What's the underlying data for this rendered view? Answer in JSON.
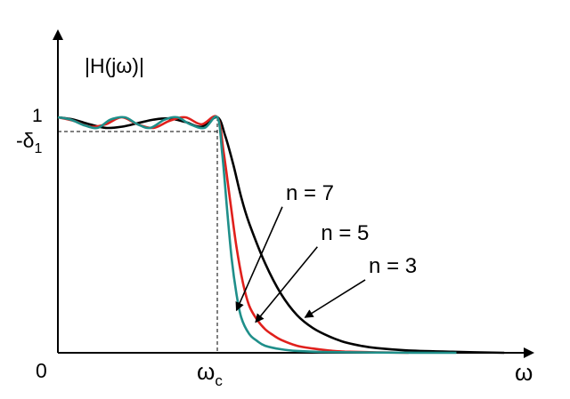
{
  "chart_data": {
    "type": "line",
    "title": "",
    "ylabel": "|H(jω)|",
    "xlabel": "ω",
    "origin_label": "0",
    "y_tick_top": "1",
    "y_tick_ripple": "-δ",
    "y_tick_ripple_sub": "1",
    "x_tick_cutoff": "ω",
    "x_tick_cutoff_sub": "c",
    "xlim": [
      0,
      2.9
    ],
    "ylim": [
      0,
      1.25
    ],
    "cutoff": 1.0,
    "passband_min": 0.95,
    "grid": false,
    "legend": "none",
    "series": [
      {
        "name": "n = 3",
        "color": "#000000",
        "x": [
          0,
          0.1,
          0.2,
          0.3,
          0.4,
          0.5,
          0.6,
          0.7,
          0.8,
          0.9,
          1.0,
          1.05,
          1.1,
          1.15,
          1.2,
          1.3,
          1.4,
          1.5,
          1.6,
          1.7,
          1.8,
          1.9,
          2.0,
          2.2,
          2.5,
          2.8
        ],
        "values": [
          1.0,
          0.99,
          0.97,
          0.955,
          0.96,
          0.975,
          0.99,
          0.995,
          0.98,
          0.96,
          1.0,
          0.92,
          0.8,
          0.66,
          0.55,
          0.38,
          0.25,
          0.16,
          0.105,
          0.07,
          0.045,
          0.03,
          0.02,
          0.01,
          0.004,
          0.0
        ]
      },
      {
        "name": "n = 5",
        "color": "#e0201c",
        "x": [
          0,
          0.1,
          0.2,
          0.3,
          0.4,
          0.5,
          0.6,
          0.7,
          0.8,
          0.9,
          1.0,
          1.04,
          1.08,
          1.12,
          1.16,
          1.2,
          1.25,
          1.3,
          1.35,
          1.4,
          1.5,
          1.6,
          1.7,
          1.8,
          2.0,
          2.2
        ],
        "values": [
          1.0,
          0.985,
          0.96,
          0.97,
          1.0,
          0.97,
          0.955,
          0.985,
          1.0,
          0.97,
          1.0,
          0.85,
          0.65,
          0.45,
          0.3,
          0.2,
          0.14,
          0.1,
          0.075,
          0.055,
          0.03,
          0.018,
          0.01,
          0.005,
          0.002,
          0.0
        ]
      },
      {
        "name": "n = 7",
        "color": "#1f8f8a",
        "x": [
          0,
          0.08,
          0.17,
          0.25,
          0.33,
          0.42,
          0.5,
          0.58,
          0.67,
          0.75,
          0.83,
          0.92,
          1.0,
          1.03,
          1.06,
          1.09,
          1.12,
          1.15,
          1.2,
          1.25,
          1.3,
          1.4,
          1.5,
          1.7,
          2.0,
          2.5
        ],
        "values": [
          1.0,
          0.99,
          0.965,
          0.955,
          0.99,
          1.0,
          0.97,
          0.955,
          0.99,
          1.0,
          0.97,
          0.955,
          1.0,
          0.85,
          0.62,
          0.4,
          0.25,
          0.15,
          0.08,
          0.05,
          0.03,
          0.015,
          0.008,
          0.003,
          0.001,
          0.0
        ]
      }
    ],
    "annotations": [
      {
        "text": "n = 7",
        "series": "n = 7",
        "text_at": [
          1.43,
          0.65
        ],
        "arrow_to": [
          1.12,
          0.18
        ]
      },
      {
        "text": "n = 5",
        "series": "n = 5",
        "text_at": [
          1.65,
          0.48
        ],
        "arrow_to": [
          1.24,
          0.13
        ]
      },
      {
        "text": "n = 3",
        "series": "n = 3",
        "text_at": [
          1.95,
          0.34
        ],
        "arrow_to": [
          1.55,
          0.15
        ]
      }
    ]
  }
}
